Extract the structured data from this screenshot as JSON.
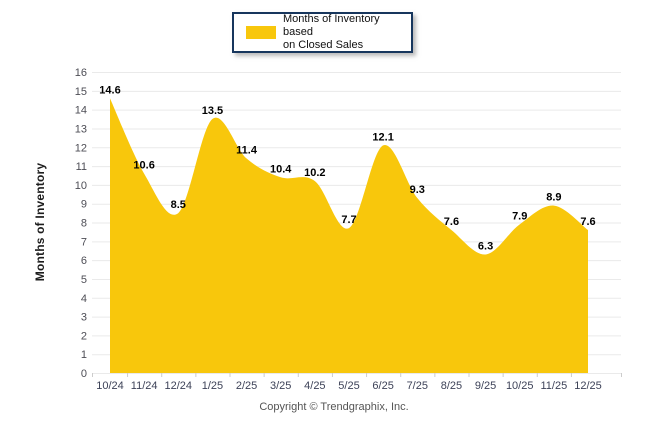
{
  "page": {
    "background": "#ffffff"
  },
  "legend": {
    "line1": "Months of Inventory based",
    "line2": "on Closed Sales"
  },
  "footer": {
    "copyright": "Copyright © Trendgraphix, Inc."
  },
  "chart_data": {
    "type": "area",
    "series_name": "Months of Inventory based on Closed Sales",
    "categories": [
      "10/24",
      "11/24",
      "12/24",
      "1/25",
      "2/25",
      "3/25",
      "4/25",
      "5/25",
      "6/25",
      "7/25",
      "8/25",
      "9/25",
      "10/25",
      "11/25",
      "12/25"
    ],
    "values": [
      14.6,
      10.6,
      8.5,
      13.5,
      11.4,
      10.4,
      10.2,
      7.7,
      12.1,
      9.3,
      7.6,
      6.3,
      7.9,
      8.9,
      7.6
    ],
    "title": "",
    "xlabel": "",
    "ylabel": "Months of Inventory",
    "ylim": [
      0,
      16
    ],
    "ytick_step": 1,
    "grid": true,
    "legend_position": "top-center",
    "colors": {
      "fill": "#F8C70C",
      "legend_border": "#17365D",
      "grid_line": "#EAEAEA",
      "tick": "#CCCCCC",
      "y_tick_label": "#4D4D55",
      "x_tick_label": "#3D4258",
      "data_label": "#000000",
      "footer_text": "#555555"
    }
  }
}
